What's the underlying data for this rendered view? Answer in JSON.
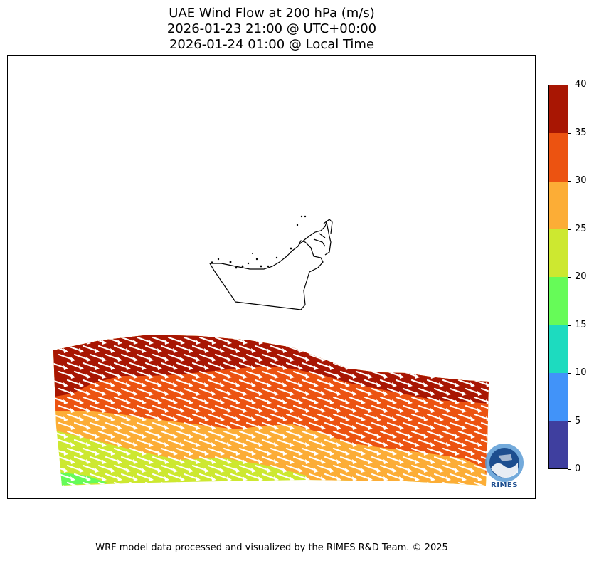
{
  "title": {
    "line1": "UAE Wind Flow at 200 hPa (m/s)",
    "line2": "2026-01-23 21:00 @ UTC+00:00",
    "line3": "2026-01-24 01:00 @ Local Time"
  },
  "map": {
    "variable": "wind speed",
    "units": "m/s",
    "vector_color": "#ffffff",
    "border_color": "#000000",
    "region": "United Arab Emirates",
    "dominant_flow_direction": "west-north-west to east-south-east"
  },
  "colorbar": {
    "levels": [
      0,
      5,
      10,
      15,
      20,
      25,
      30,
      35,
      40
    ],
    "tick_labels": [
      "0",
      "5",
      "10",
      "15",
      "20",
      "25",
      "30",
      "35",
      "40"
    ],
    "colors": [
      "#3f3f9f",
      "#4193f9",
      "#1ddbbf",
      "#66fb58",
      "#cde830",
      "#fcad36",
      "#ec5311",
      "#a81603"
    ]
  },
  "footer": {
    "text": "WRF model data processed and visualized by the RIMES R&D Team. © 2025"
  },
  "logo": {
    "text": "RIMES",
    "colors": {
      "primary": "#1d4e8f",
      "accent": "#5b9bd5"
    }
  }
}
